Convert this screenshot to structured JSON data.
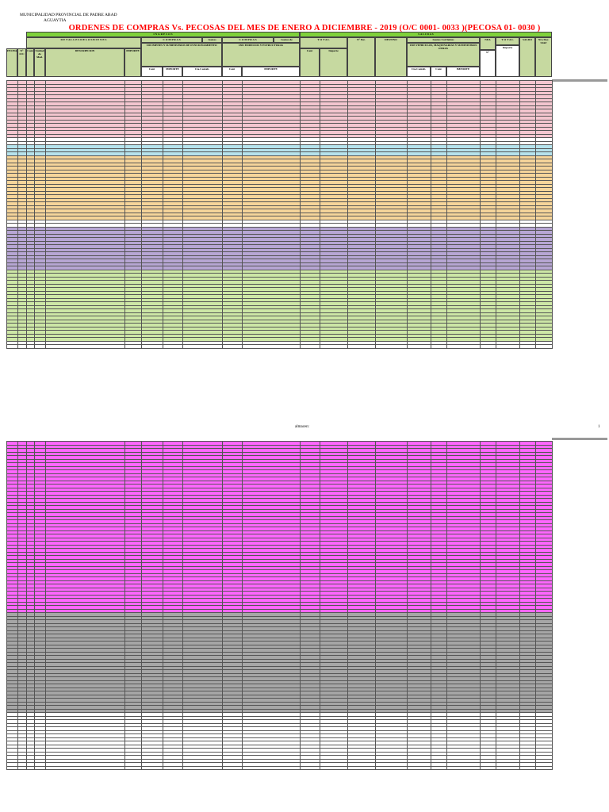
{
  "header": {
    "municipality_line1": "MUNICIPALIDAD PROVINCIAL DE PADRE ABAD",
    "municipality_line2": "AGUAYTIA",
    "title": "ORDENES DE COMPRAS Vs. PECOSAS DEL MES DE ENERO A DICIEMBRE - 2019 (O/C 0001- 0033 )(PECOSA 01- 0030 )"
  },
  "columns": {
    "ingresos": "I N G R E S O S",
    "salidas": "S A L I D A S",
    "detalles": "D E T A L L E S   D E   L O S   B I E N E S",
    "compras": "C O M P R A S",
    "gastos_corrientes": "Gastos Corrientes",
    "compras2": "C O M P R A S",
    "gastos_inversiones": "Gastos de Inversiones",
    "total": "T O T A L",
    "gastos_corrientes2": "Gastos Corrientes",
    "nea": "NEA",
    "total2": "T O T A L",
    "saldo": "SALDO",
    "nro_doc": "Nro Doc. SIAF",
    "fecha": "FECHA",
    "n_oc": "N° O/C",
    "cant": "Cant",
    "unidad_medida": "Unidad de Med.",
    "descripcion": "DESCRIPCION",
    "importe": "IMPORTE",
    "sub1": "1301 BIENES Y SUMINISTROS DE FUNCIONAMIENTO",
    "sub2": "1501 EDIFICIOS Y ESTRUCTURAS",
    "sub3": "1503 VEHICULOS, MAQUINARIAS Y SUMINISTROS OTROS",
    "cant2": "Cant",
    "importe2": "IMPORTE",
    "cta_contab": "Cta.Contab.",
    "cant3": "Cant",
    "importe3": "IMPORTE",
    "cant4": "Cant",
    "importe4": "Importe",
    "n_pec": "N° Pec.",
    "destino": "DESTINO",
    "cta_contab2": "Cta.Contab.",
    "cant5": "Cant",
    "importe5": "IMPORTE",
    "n": "N°",
    "importe6": "Importe"
  },
  "colors": {
    "title_red": "#ff0000",
    "header_green": "#7fd13b",
    "header_olive": "#c6d9a0",
    "row_white": "#ffffff",
    "row_pink": "#f4c6cf",
    "row_cyan": "#b6e3ec",
    "row_orange": "#f6d59a",
    "row_purple": "#b7a6d4",
    "row_green": "#cde7a6",
    "row_magenta": "#ff66ff",
    "row_gray": "#a6a6a6",
    "badge_red": "#ff0000",
    "badge_blue": "#3a6fd8",
    "badge_orange": "#ff9900"
  },
  "footer": {
    "almacen": "almacen:",
    "page": "1"
  }
}
